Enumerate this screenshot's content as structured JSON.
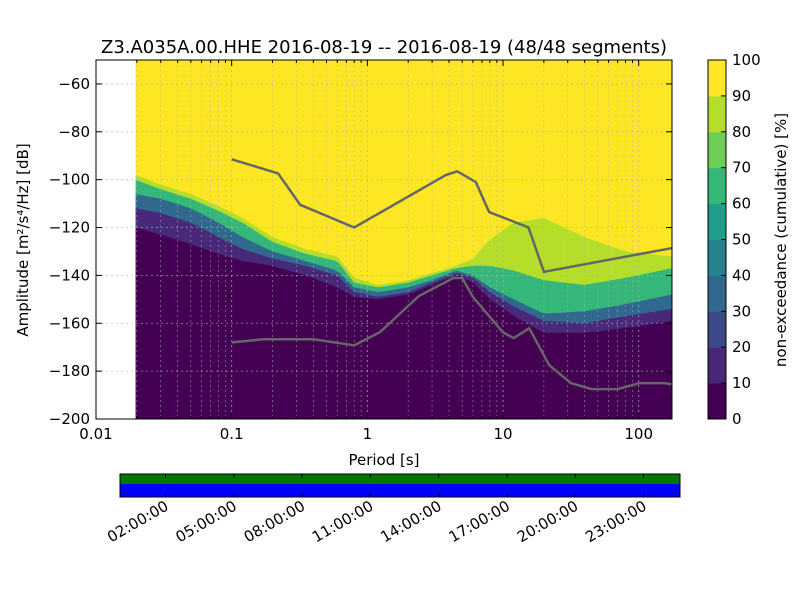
{
  "chart_data": {
    "type": "heatmap",
    "title": "Z3.A035A.00.HHE   2016-08-19 -- 2016-08-19  (48/48 segments)",
    "xlabel": "Period [s]",
    "ylabel": "Amplitude [m²/s⁴/Hz] [dB]",
    "x_scale": "log",
    "xlim": [
      0.01,
      176
    ],
    "ylim": [
      -200,
      -50
    ],
    "x_ticks": [
      {
        "value": 0.01,
        "label": "0.01"
      },
      {
        "value": 0.1,
        "label": "0.1"
      },
      {
        "value": 1,
        "label": "1"
      },
      {
        "value": 10,
        "label": "10"
      },
      {
        "value": 100,
        "label": "100"
      }
    ],
    "y_ticks": [
      {
        "value": -60,
        "label": "−60"
      },
      {
        "value": -80,
        "label": "−80"
      },
      {
        "value": -100,
        "label": "−100"
      },
      {
        "value": -120,
        "label": "−120"
      },
      {
        "value": -140,
        "label": "−140"
      },
      {
        "value": -160,
        "label": "−160"
      },
      {
        "value": -180,
        "label": "−180"
      },
      {
        "value": -200,
        "label": "−200"
      }
    ],
    "data_x_start": 0.0196,
    "grid": true,
    "colorbar": {
      "label": "non-exceedance (cumulative) [%]",
      "range": [
        0,
        100
      ],
      "ticks": [
        "0",
        "10",
        "20",
        "30",
        "40",
        "50",
        "60",
        "70",
        "80",
        "90",
        "100"
      ],
      "colors": [
        "#440154",
        "#482878",
        "#3e4989",
        "#31688e",
        "#26828e",
        "#1f9e89",
        "#35b779",
        "#6ece58",
        "#b5de2b",
        "#fde725"
      ]
    },
    "contours": {
      "comment": "non-exceedance boundary curves (period s, dB)",
      "p5": [
        [
          0.0196,
          -120
        ],
        [
          0.03,
          -123
        ],
        [
          0.05,
          -127
        ],
        [
          0.08,
          -131
        ],
        [
          0.12,
          -134
        ],
        [
          0.2,
          -136
        ],
        [
          0.35,
          -140
        ],
        [
          0.6,
          -145
        ],
        [
          0.8,
          -149
        ],
        [
          1.2,
          -150
        ],
        [
          2,
          -148
        ],
        [
          3,
          -144
        ],
        [
          4.5,
          -140
        ],
        [
          6,
          -143
        ],
        [
          8,
          -150
        ],
        [
          12,
          -157
        ],
        [
          20,
          -164
        ],
        [
          40,
          -164
        ],
        [
          80,
          -162
        ],
        [
          176,
          -159
        ]
      ],
      "p20": [
        [
          0.0196,
          -112
        ],
        [
          0.03,
          -114
        ],
        [
          0.05,
          -118
        ],
        [
          0.08,
          -124
        ],
        [
          0.12,
          -129
        ],
        [
          0.2,
          -133
        ],
        [
          0.35,
          -136
        ],
        [
          0.6,
          -140
        ],
        [
          0.8,
          -147
        ],
        [
          1.2,
          -149
        ],
        [
          2,
          -147
        ],
        [
          3,
          -143
        ],
        [
          4.5,
          -139
        ],
        [
          6,
          -141
        ],
        [
          8,
          -147
        ],
        [
          12,
          -153
        ],
        [
          20,
          -159
        ],
        [
          40,
          -160
        ],
        [
          80,
          -157
        ],
        [
          176,
          -154
        ]
      ],
      "p50": [
        [
          0.0196,
          -106
        ],
        [
          0.03,
          -108
        ],
        [
          0.05,
          -112
        ],
        [
          0.08,
          -118
        ],
        [
          0.12,
          -124
        ],
        [
          0.2,
          -130
        ],
        [
          0.35,
          -134
        ],
        [
          0.6,
          -138
        ],
        [
          0.8,
          -145
        ],
        [
          1.2,
          -147
        ],
        [
          2,
          -145
        ],
        [
          3,
          -142
        ],
        [
          4.5,
          -138
        ],
        [
          6,
          -140
        ],
        [
          8,
          -145
        ],
        [
          12,
          -150
        ],
        [
          20,
          -156
        ],
        [
          40,
          -155
        ],
        [
          80,
          -152
        ],
        [
          176,
          -148
        ]
      ],
      "p85": [
        [
          0.0196,
          -100
        ],
        [
          0.03,
          -104
        ],
        [
          0.05,
          -108
        ],
        [
          0.08,
          -113
        ],
        [
          0.12,
          -118
        ],
        [
          0.2,
          -126
        ],
        [
          0.35,
          -131
        ],
        [
          0.6,
          -134
        ],
        [
          0.8,
          -143
        ],
        [
          1.2,
          -145
        ],
        [
          2,
          -143
        ],
        [
          3,
          -140
        ],
        [
          4.5,
          -137
        ],
        [
          6,
          -136
        ],
        [
          8,
          -136
        ],
        [
          12,
          -138
        ],
        [
          20,
          -142
        ],
        [
          40,
          -144
        ],
        [
          80,
          -141
        ],
        [
          176,
          -137
        ]
      ],
      "p95": [
        [
          0.0196,
          -98
        ],
        [
          0.03,
          -102
        ],
        [
          0.05,
          -106
        ],
        [
          0.08,
          -111
        ],
        [
          0.12,
          -116
        ],
        [
          0.2,
          -124
        ],
        [
          0.35,
          -129
        ],
        [
          0.6,
          -132
        ],
        [
          0.8,
          -141
        ],
        [
          1.2,
          -144
        ],
        [
          2,
          -142
        ],
        [
          3,
          -139
        ],
        [
          4.5,
          -136
        ],
        [
          6,
          -133
        ],
        [
          8,
          -125
        ],
        [
          12,
          -118
        ],
        [
          20,
          -116
        ],
        [
          40,
          -124
        ],
        [
          80,
          -130
        ],
        [
          176,
          -132
        ]
      ]
    },
    "nhnm": [
      [
        0.1,
        -91.5
      ],
      [
        0.22,
        -97.4
      ],
      [
        0.32,
        -110.5
      ],
      [
        0.8,
        -120
      ],
      [
        3.8,
        -98
      ],
      [
        4.6,
        -96.5
      ],
      [
        6.3,
        -101
      ],
      [
        7.9,
        -113.5
      ],
      [
        15.4,
        -120
      ],
      [
        20,
        -138.5
      ],
      [
        176,
        -128.6
      ]
    ],
    "nlnm": [
      [
        0.1,
        -168
      ],
      [
        0.17,
        -166.7
      ],
      [
        0.4,
        -166.7
      ],
      [
        0.8,
        -169.2
      ],
      [
        1.24,
        -163.7
      ],
      [
        2.4,
        -148.6
      ],
      [
        4.3,
        -141.1
      ],
      [
        5,
        -141.1
      ],
      [
        6,
        -149
      ],
      [
        10,
        -163.8
      ],
      [
        12,
        -166.2
      ],
      [
        15.6,
        -162.1
      ],
      [
        21.9,
        -177.5
      ],
      [
        31.6,
        -185
      ],
      [
        45,
        -187.5
      ],
      [
        70,
        -187.5
      ],
      [
        101,
        -185
      ],
      [
        154,
        -185
      ],
      [
        176,
        -185.5
      ]
    ],
    "timeline": {
      "ticks": [
        "02:00:00",
        "05:00:00",
        "08:00:00",
        "11:00:00",
        "14:00:00",
        "17:00:00",
        "20:00:00",
        "23:00:00"
      ],
      "hours": [
        2,
        5,
        8,
        11,
        14,
        17,
        20,
        23
      ],
      "range_hours": [
        0,
        24.6
      ],
      "colors": {
        "available": "#007700",
        "used": "#0000ff"
      }
    }
  }
}
